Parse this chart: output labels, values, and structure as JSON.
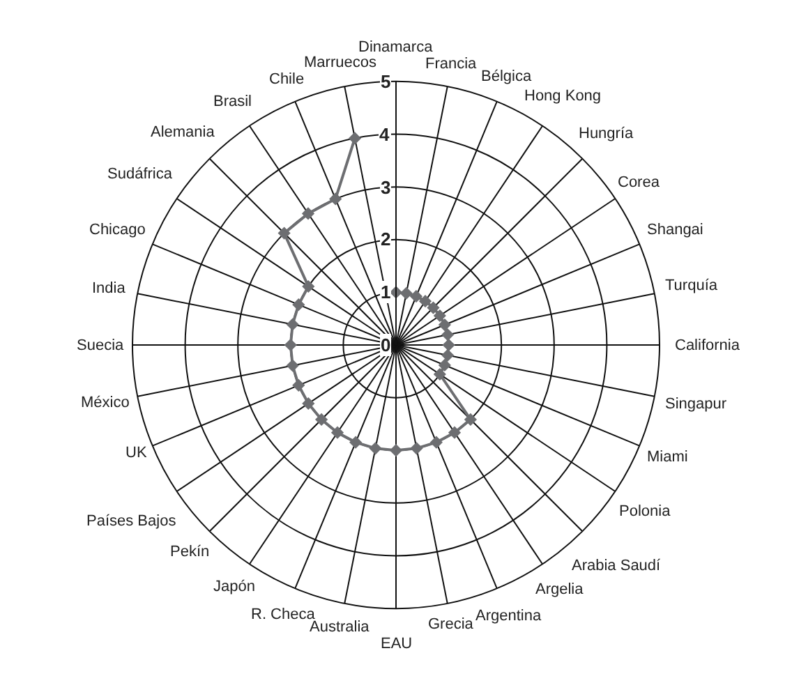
{
  "chart_data": {
    "type": "radar",
    "categories": [
      "Dinamarca",
      "Francia",
      "Bélgica",
      "Hong Kong",
      "Hungría",
      "Corea",
      "Shangai",
      "Turquía",
      "California",
      "Singapur",
      "Miami",
      "Polonia",
      "Arabia Saudí",
      "Argelia",
      "Argentina",
      "Grecia",
      "EAU",
      "Australia",
      "R. Checa",
      "Japón",
      "Pekín",
      "Países Bajos",
      "UK",
      "México",
      "Suecia",
      "India",
      "Chicago",
      "Sudáfrica",
      "Alemania",
      "Brasil",
      "Chile",
      "Marruecos"
    ],
    "series": [
      {
        "color": "#6d6e71",
        "values": [
          1,
          1,
          1,
          1,
          1,
          1,
          1,
          1,
          1,
          1,
          1,
          1,
          2,
          2,
          2,
          2,
          2,
          2,
          2,
          2,
          2,
          2,
          2,
          2,
          2,
          2,
          2,
          2,
          3,
          3,
          3,
          4
        ]
      }
    ],
    "ylim": [
      0,
      5
    ],
    "yticks": [
      0,
      1,
      2,
      3,
      4,
      5
    ],
    "marker": "diamond",
    "line_style": "solid",
    "grid": true,
    "legend": false
  }
}
